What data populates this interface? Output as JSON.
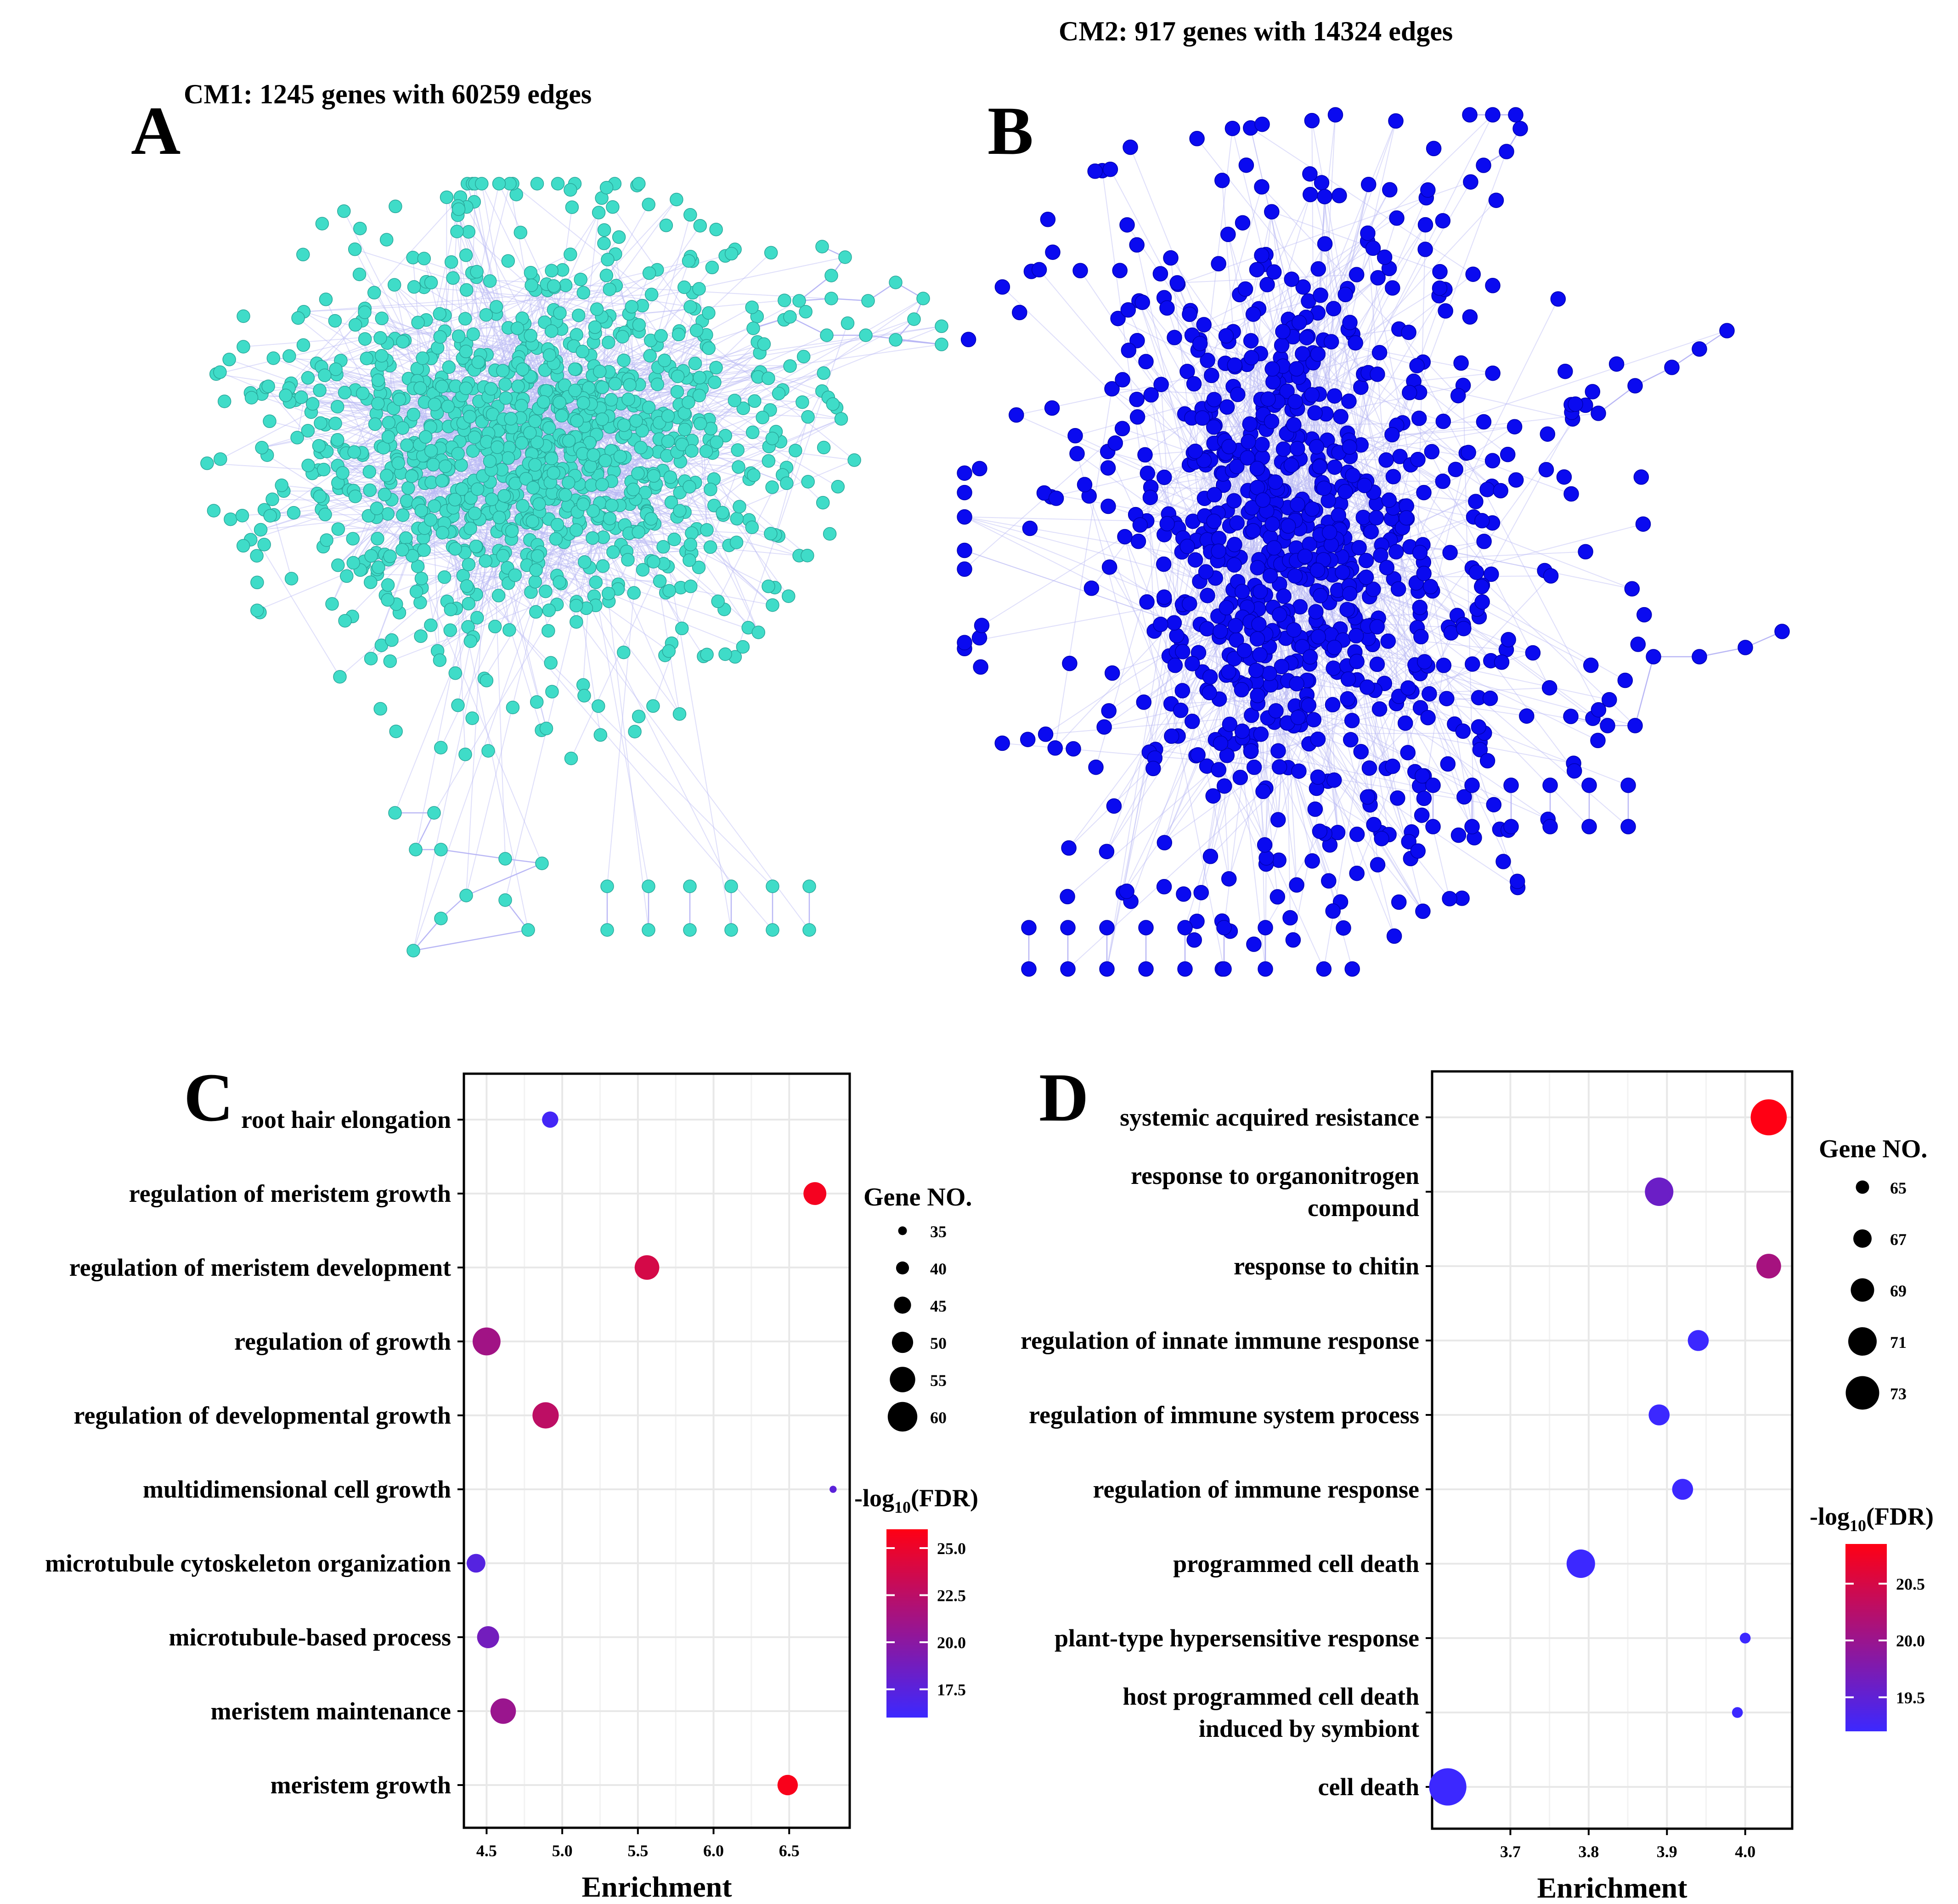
{
  "figure": {
    "panel_a": {
      "letter": "A",
      "title": "CM1: 1245 genes with 60259 edges",
      "node_color": "#3fdcc8",
      "edge_color": "#b9b7f5"
    },
    "panel_b": {
      "letter": "B",
      "title": "CM2: 917 genes with 14324 edges",
      "node_color": "#0a0af0",
      "edge_color": "#b9b7f5"
    },
    "panel_c": {
      "letter": "C"
    },
    "panel_d": {
      "letter": "D"
    }
  },
  "chart_data": [
    {
      "panel": "C",
      "type": "scatter",
      "xlabel": "Enrichment",
      "xlim": [
        4.35,
        6.9
      ],
      "xticks": [
        4.5,
        5.0,
        5.5,
        6.0,
        6.5
      ],
      "xtick_labels": [
        "4.5",
        "5.0",
        "5.5",
        "6.0",
        "6.5"
      ],
      "categories": [
        "root hair elongation",
        "regulation of meristem growth",
        "regulation of meristem development",
        "regulation of growth",
        "regulation of developmental growth",
        "multidimensional cell growth",
        "microtubule cytoskeleton organization",
        "microtubule-based process",
        "meristem maintenance",
        "meristem growth"
      ],
      "category_lines": [
        [
          "root hair elongation"
        ],
        [
          "regulation of meristem growth"
        ],
        [
          "regulation of meristem development"
        ],
        [
          "regulation of growth"
        ],
        [
          "regulation of developmental growth"
        ],
        [
          "multidimensional cell growth"
        ],
        [
          "microtubule cytoskeleton organization"
        ],
        [
          "microtubule-based process"
        ],
        [
          "meristem maintenance"
        ],
        [
          "meristem growth"
        ]
      ],
      "enrichment": [
        4.92,
        6.67,
        5.56,
        4.5,
        4.89,
        6.79,
        4.43,
        4.51,
        4.61,
        6.49
      ],
      "gene_no": [
        44,
        52,
        54,
        58,
        56,
        33,
        47,
        51,
        55,
        49
      ],
      "neg_log10_fdr": [
        16.4,
        25.5,
        23.8,
        21.2,
        22.6,
        17.6,
        17.3,
        18.8,
        20.8,
        25.7
      ],
      "size_legend": {
        "title": "Gene NO.",
        "values": [
          35,
          40,
          45,
          50,
          55,
          60
        ]
      },
      "color_legend": {
        "title_prefix": "-log",
        "title_sub": "10",
        "title_suffix": "(FDR)",
        "min": 16.0,
        "max": 26.0,
        "ticks": [
          17.5,
          20.0,
          22.5,
          25.0
        ],
        "tick_labels": [
          "17.5",
          "20.0",
          "22.5",
          "25.0"
        ]
      },
      "gene_range": [
        30,
        62
      ]
    },
    {
      "panel": "D",
      "type": "scatter",
      "xlabel": "Enrichment",
      "xlim": [
        3.6,
        4.06
      ],
      "xticks": [
        3.7,
        3.8,
        3.9,
        4.0
      ],
      "xtick_labels": [
        "3.7",
        "3.8",
        "3.9",
        "4.0"
      ],
      "categories": [
        "systemic acquired resistance",
        "response to organonitrogen compound",
        "response to chitin",
        "regulation of innate immune response",
        "regulation of immune system process",
        "regulation of immune response",
        "programmed cell death",
        "plant-type hypersensitive response",
        "host programmed cell death induced by symbiont",
        "cell death"
      ],
      "category_lines": [
        [
          "systemic acquired resistance"
        ],
        [
          "response to organonitrogen",
          "compound"
        ],
        [
          "response to chitin"
        ],
        [
          "regulation of innate immune response"
        ],
        [
          "regulation of immune system process"
        ],
        [
          "regulation of immune response"
        ],
        [
          "programmed cell death"
        ],
        [
          "plant-type hypersensitive response"
        ],
        [
          "host programmed cell death",
          "induced by symbiont"
        ],
        [
          "cell death"
        ]
      ],
      "enrichment": [
        4.03,
        3.89,
        4.03,
        3.94,
        3.89,
        3.92,
        3.79,
        4.0,
        3.99,
        3.62
      ],
      "gene_no": [
        74.0,
        71.0,
        69.5,
        68.0,
        68.0,
        68.0,
        71.0,
        64.0,
        64.0,
        74.5
      ],
      "neg_log10_fdr": [
        20.85,
        19.6,
        20.1,
        19.2,
        19.2,
        19.2,
        19.2,
        19.2,
        19.2,
        19.2
      ],
      "size_legend": {
        "title": "Gene NO.",
        "values": [
          65,
          67,
          69,
          71,
          73
        ]
      },
      "color_legend": {
        "title_prefix": "-log",
        "title_sub": "10",
        "title_suffix": "(FDR)",
        "min": 19.2,
        "max": 20.85,
        "ticks": [
          19.5,
          20.0,
          20.5
        ],
        "tick_labels": [
          "19.5",
          "20.0",
          "20.5"
        ]
      },
      "gene_range": [
        63,
        75
      ]
    }
  ]
}
